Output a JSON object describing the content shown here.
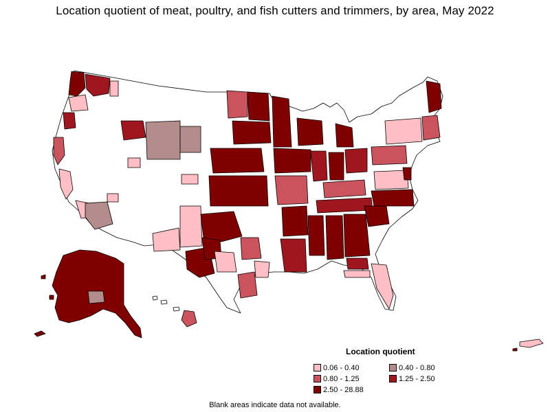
{
  "title": "Location quotient of meat, poultry, and fish cutters and trimmers, by area, May 2022",
  "legend": {
    "title": "Location quotient",
    "items": [
      {
        "label": "0.06 - 0.40",
        "color": "#FFBFC4"
      },
      {
        "label": "0.40 - 0.80",
        "color": "#B38C8C"
      },
      {
        "label": "0.80 - 1.25",
        "color": "#C9545E"
      },
      {
        "label": "1.25 - 2.50",
        "color": "#A0161E"
      },
      {
        "label": "2.50 - 28.88",
        "color": "#800000"
      }
    ]
  },
  "footnote": "Blank areas indicate data not available.",
  "colors": {
    "blank": "#FFFFFF",
    "border": "#000000"
  }
}
